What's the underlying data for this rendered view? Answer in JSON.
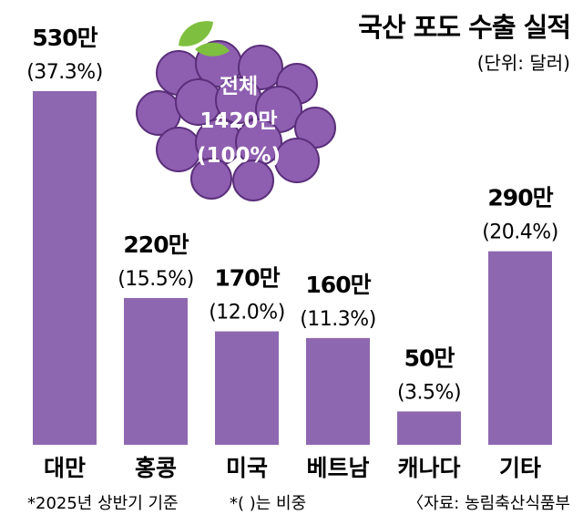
{
  "title": "국산 포도 수출 실적",
  "unit": "(단위: 달러)",
  "total": {
    "label": "전체",
    "value": "1420만",
    "share": "(100%)"
  },
  "footnotes": {
    "basis": "*2025년 상반기 기준",
    "share_note": "*(  )는 비중",
    "source": "〈자료: 농림축산식품부"
  },
  "colors": {
    "bar": "#8d68b0",
    "grape": "#8e5fb0",
    "grape_outline": "#5a2e7a",
    "leaf": "#7fbf3f"
  },
  "chart_data": {
    "type": "bar",
    "title": "국산 포도 수출 실적",
    "ylabel": "",
    "xlabel": "",
    "categories": [
      "대만",
      "홍콩",
      "미국",
      "베트남",
      "캐나다",
      "기타"
    ],
    "values": [
      530,
      220,
      170,
      160,
      50,
      290
    ],
    "value_labels": [
      "530만",
      "220만",
      "170만",
      "160만",
      "50만",
      "290만"
    ],
    "share_labels": [
      "(37.3%)",
      "(15.5%)",
      "(12.0%)",
      "(11.3%)",
      "(3.5%)",
      "(20.4%)"
    ],
    "ylim": [
      0,
      530
    ],
    "grid": false,
    "legend": "none"
  }
}
